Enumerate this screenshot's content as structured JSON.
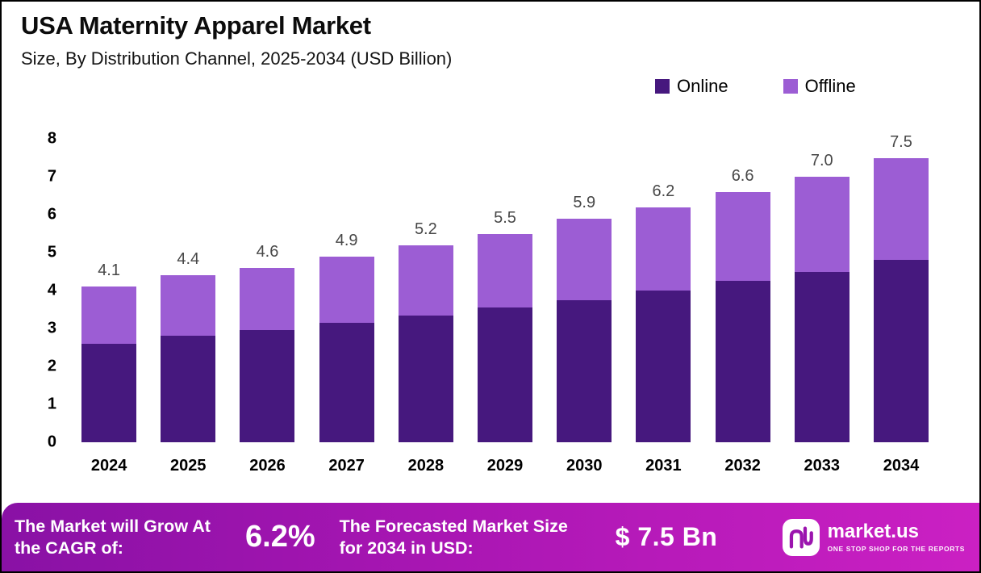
{
  "header": {
    "title": "USA Maternity Apparel Market",
    "subtitle": "Size, By Distribution Channel, 2025-2034 (USD Billion)"
  },
  "legend": [
    {
      "label": "Online",
      "color": "#46187e"
    },
    {
      "label": "Offline",
      "color": "#9c5dd4"
    }
  ],
  "chart_data": {
    "type": "bar",
    "stacked": true,
    "title": "USA Maternity Apparel Market",
    "subtitle": "Size, By Distribution Channel, 2025-2034 (USD Billion)",
    "categories": [
      "2024",
      "2025",
      "2026",
      "2027",
      "2028",
      "2029",
      "2030",
      "2031",
      "2032",
      "2033",
      "2034"
    ],
    "series": [
      {
        "name": "Online",
        "color": "#46187e",
        "values": [
          2.6,
          2.8,
          2.95,
          3.15,
          3.35,
          3.55,
          3.75,
          4.0,
          4.25,
          4.5,
          4.8
        ]
      },
      {
        "name": "Offline",
        "color": "#9c5dd4",
        "values": [
          1.5,
          1.6,
          1.65,
          1.75,
          1.85,
          1.95,
          2.15,
          2.2,
          2.35,
          2.5,
          2.7
        ]
      }
    ],
    "totals": [
      4.1,
      4.4,
      4.6,
      4.9,
      5.2,
      5.5,
      5.9,
      6.2,
      6.6,
      7.0,
      7.5
    ],
    "xlabel": "",
    "ylabel": "",
    "ylim": [
      0,
      8
    ],
    "yticks": [
      0,
      1,
      2,
      3,
      4,
      5,
      6,
      7,
      8
    ],
    "grid": false,
    "legend_position": "top-right",
    "units": "USD Billion"
  },
  "footer": {
    "cagr_label": "The Market will Grow At the CAGR of:",
    "cagr_value": "6.2%",
    "forecast_label": "The Forecasted Market Size for 2034 in USD:",
    "forecast_value": "$ 7.5 Bn",
    "brand": {
      "name": "market.us",
      "tagline": "ONE STOP SHOP FOR THE REPORTS"
    }
  }
}
